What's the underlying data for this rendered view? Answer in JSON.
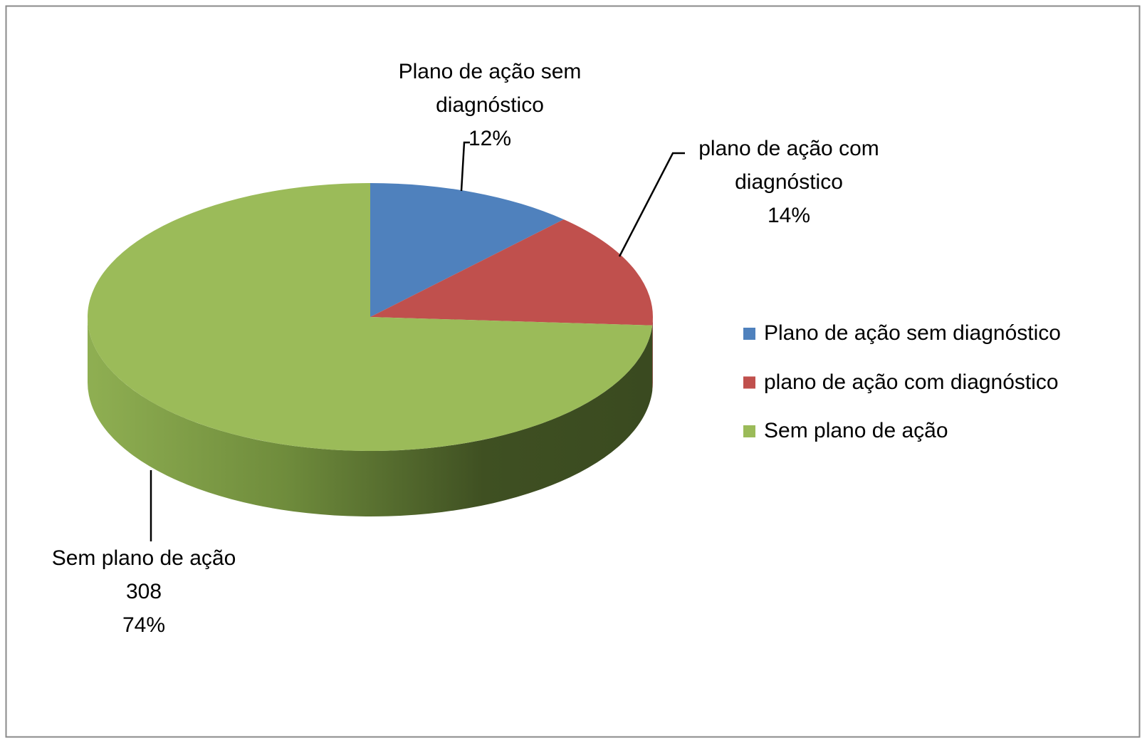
{
  "chart_data": {
    "type": "pie3d",
    "categories": [
      "Plano de ação sem diagnóstico",
      "plano de ação com diagnóstico",
      "Sem plano de ação"
    ],
    "values": [
      12,
      14,
      74
    ],
    "value_labels": [
      "12%",
      "14%",
      "74%"
    ],
    "counts": [
      null,
      null,
      308
    ],
    "colors": [
      "#4f81bd",
      "#c0504d",
      "#9bbb59"
    ],
    "legend": "right"
  }
}
